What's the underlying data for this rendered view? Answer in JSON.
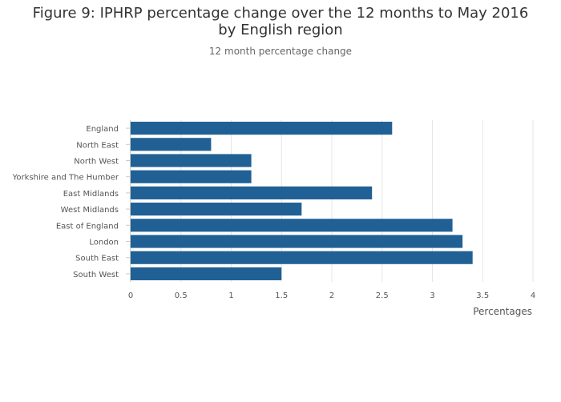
{
  "chart_data": {
    "type": "bar",
    "orientation": "horizontal",
    "title": "Figure 9: IPHRP percentage change over the 12 months to May 2016 by English region",
    "subtitle": "12 month percentage change",
    "xlabel": "Percentages",
    "ylabel": "",
    "categories": [
      "England",
      "North East",
      "North West",
      "Yorkshire and The Humber",
      "East Midlands",
      "West Midlands",
      "East of England",
      "London",
      "South East",
      "South West"
    ],
    "values": [
      2.6,
      0.8,
      1.2,
      1.2,
      2.4,
      1.7,
      3.2,
      3.3,
      3.4,
      1.5
    ],
    "xlim": [
      0,
      4
    ],
    "x_ticks": [
      "0",
      "0.5",
      "1",
      "1.5",
      "2",
      "2.5",
      "3",
      "3.5",
      "4"
    ],
    "grid": true,
    "legend": "none",
    "bar_color": "#206095"
  }
}
